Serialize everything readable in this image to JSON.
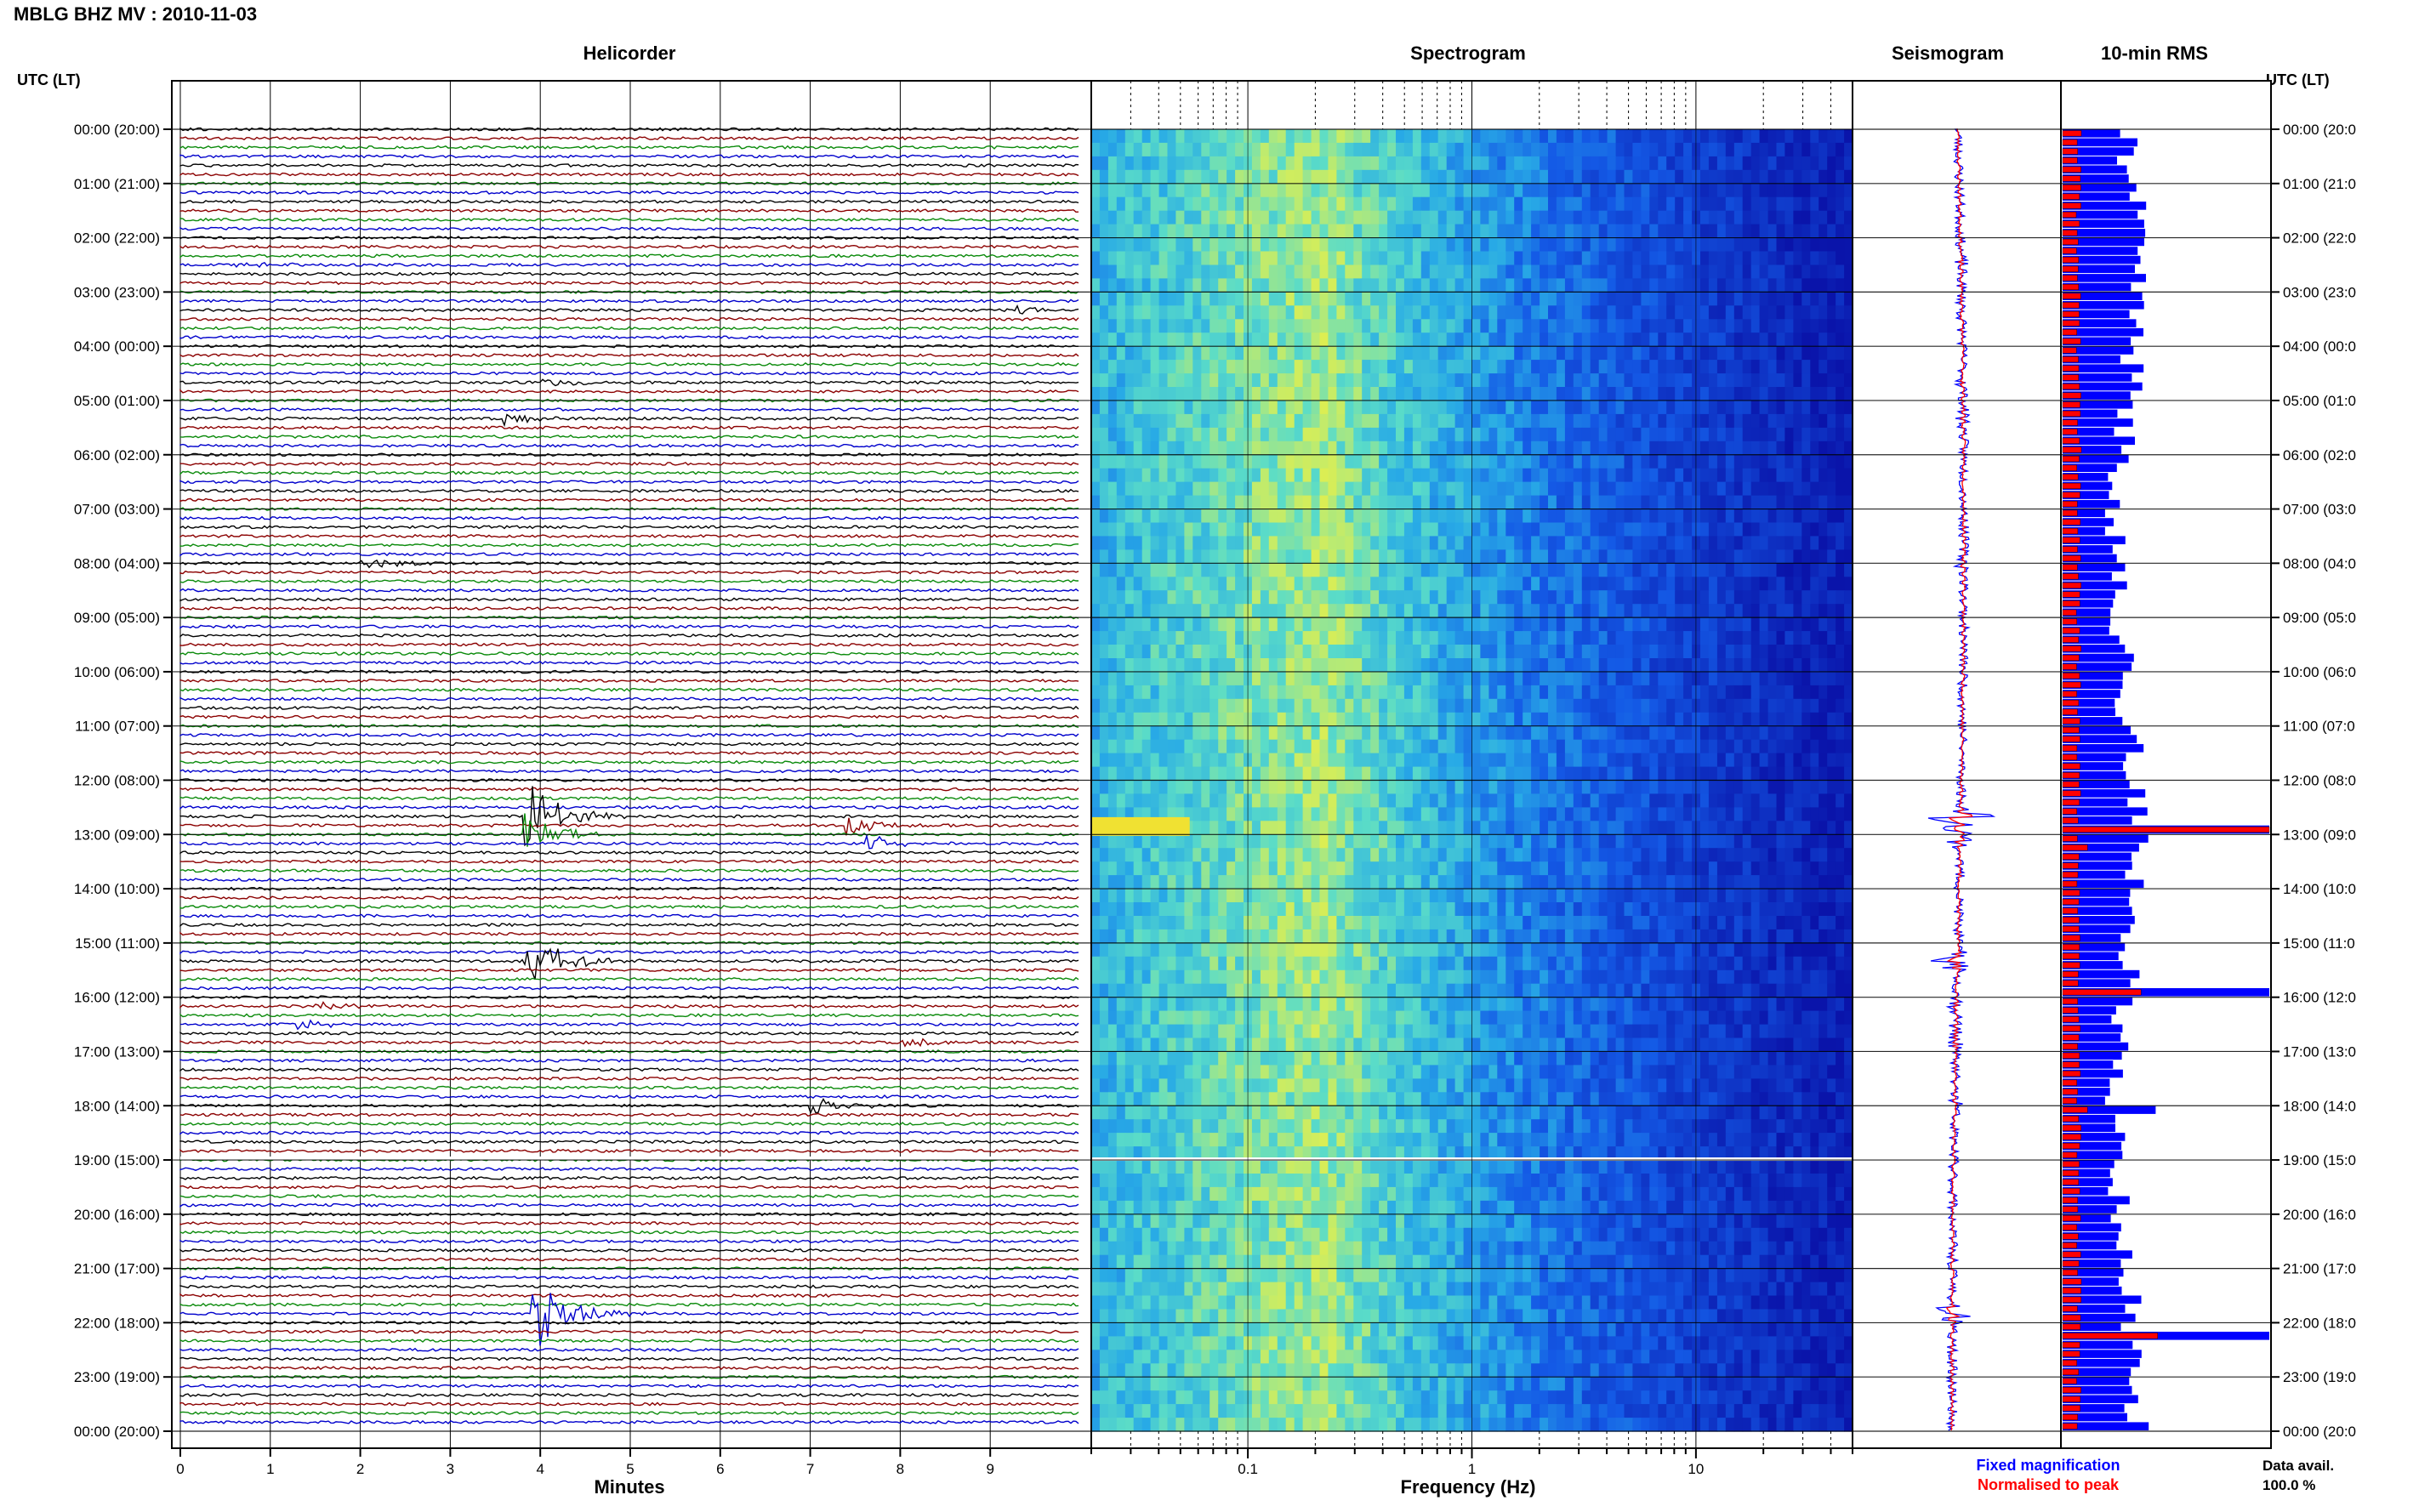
{
  "header": {
    "title": "MBLG BHZ MV : 2010-11-03"
  },
  "panels": {
    "helicorder": "Helicorder",
    "spectrogram": "Spectrogram",
    "seismogram": "Seismogram",
    "rms": "10-min RMS"
  },
  "time_axis": {
    "label_left": "UTC (LT)",
    "label_right": "UTC (LT)",
    "ticks": [
      "00:00 (20:00)",
      "01:00 (21:00)",
      "02:00 (22:00)",
      "03:00 (23:00)",
      "04:00 (00:00)",
      "05:00 (01:00)",
      "06:00 (02:00)",
      "07:00 (03:00)",
      "08:00 (04:00)",
      "09:00 (05:00)",
      "10:00 (06:00)",
      "11:00 (07:00)",
      "12:00 (08:00)",
      "13:00 (09:00)",
      "14:00 (10:00)",
      "15:00 (11:00)",
      "16:00 (12:00)",
      "17:00 (13:00)",
      "18:00 (14:00)",
      "19:00 (15:00)",
      "20:00 (16:00)",
      "21:00 (17:00)",
      "22:00 (18:00)",
      "23:00 (19:00)",
      "00:00 (20:00)"
    ],
    "ticks_right": [
      "00:00 (20:0",
      "01:00 (21:0",
      "02:00 (22:0",
      "03:00 (23:0",
      "04:00 (00:0",
      "05:00 (01:0",
      "06:00 (02:0",
      "07:00 (03:0",
      "08:00 (04:0",
      "09:00 (05:0",
      "10:00 (06:0",
      "11:00 (07:0",
      "12:00 (08:0",
      "13:00 (09:0",
      "14:00 (10:0",
      "15:00 (11:0",
      "16:00 (12:0",
      "17:00 (13:0",
      "18:00 (14:0",
      "19:00 (15:0",
      "20:00 (16:0",
      "21:00 (17:0",
      "22:00 (18:0",
      "23:00 (19:0",
      "00:00 (20:0"
    ]
  },
  "x_axes": {
    "minutes_label": "Minutes",
    "minutes_ticks": [
      "0",
      "1",
      "2",
      "3",
      "4",
      "5",
      "6",
      "7",
      "8",
      "9"
    ],
    "frequency_label": "Frequency (Hz)",
    "frequency_ticks": [
      "0.1",
      "1",
      "10"
    ]
  },
  "legend": {
    "fixed": "Fixed magnification",
    "normalised": "Normalised to peak",
    "fixed_color": "#0000ff",
    "normalised_color": "#ff0000"
  },
  "data_avail": {
    "label": "Data avail.",
    "value": "100.0 %"
  },
  "colors": {
    "trace_cycle": [
      "#000000",
      "#8b0000",
      "#0a8a0a",
      "#0000cc"
    ],
    "rms_fixed": "#0000ff",
    "rms_normalised": "#ff0000"
  },
  "chart_data": {
    "type": "heatmap",
    "helicorder": {
      "x_unit": "minutes",
      "xlim": [
        0,
        10
      ],
      "rows": 144,
      "row_minutes": 10,
      "events": [
        {
          "time": "02:30",
          "minute": 0.6,
          "amp": 1.0
        },
        {
          "time": "03:20",
          "minute": 9.3,
          "amp": 1.2
        },
        {
          "time": "04:40",
          "minute": 4.0,
          "amp": 1.2
        },
        {
          "time": "05:20",
          "minute": 3.6,
          "amp": 1.5
        },
        {
          "time": "08:00",
          "minute": 2.0,
          "amp": 2.0
        },
        {
          "time": "12:40",
          "minute": 3.8,
          "amp": 12
        },
        {
          "time": "12:50",
          "minute": 7.4,
          "amp": 2.5
        },
        {
          "time": "13:00",
          "minute": 3.8,
          "amp": 6
        },
        {
          "time": "13:10",
          "minute": 7.6,
          "amp": 2.5
        },
        {
          "time": "15:20",
          "minute": 3.8,
          "amp": 10
        },
        {
          "time": "16:10",
          "minute": 1.5,
          "amp": 1.5
        },
        {
          "time": "16:30",
          "minute": 1.3,
          "amp": 1.5
        },
        {
          "time": "16:50",
          "minute": 8.0,
          "amp": 1.5
        },
        {
          "time": "18:00",
          "minute": 7.0,
          "amp": 2.5
        },
        {
          "time": "21:50",
          "minute": 3.9,
          "amp": 12
        }
      ]
    },
    "spectrogram": {
      "x_unit": "Hz",
      "xscale": "log",
      "xlim": [
        0.02,
        50
      ],
      "peak_band_hz": [
        0.15,
        0.35
      ]
    },
    "rms": {
      "interval_minutes": 10,
      "spikes": [
        {
          "time": "12:50",
          "fixed": 1.0,
          "normalised": 1.0
        },
        {
          "time": "13:10",
          "fixed": 0.37,
          "normalised": 0.12
        },
        {
          "time": "15:50",
          "fixed": 1.0,
          "normalised": 0.38
        },
        {
          "time": "18:00",
          "fixed": 0.45,
          "normalised": 0.12
        },
        {
          "time": "22:10",
          "fixed": 1.0,
          "normalised": 0.46
        }
      ]
    }
  }
}
